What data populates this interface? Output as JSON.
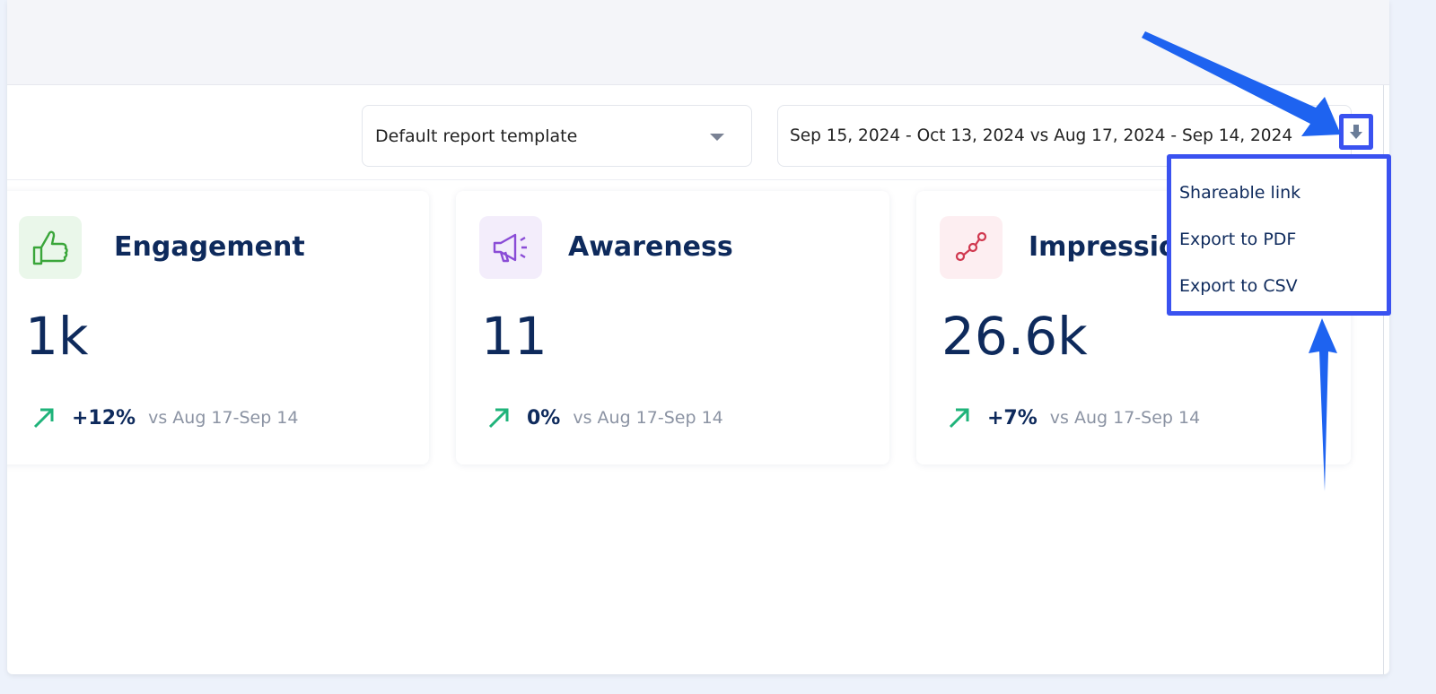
{
  "toolbar": {
    "template_select": {
      "value": "Default report template",
      "icon": "caret-down-icon"
    },
    "date_range": "Sep 15, 2024 - Oct 13, 2024 vs Aug 17, 2024 - Sep 14, 2024",
    "download_icon": "arrow-down-icon"
  },
  "cards": [
    {
      "title": "Engagement",
      "value": "1k",
      "change": "+12%",
      "compare": "vs Aug 17-Sep 14",
      "icon": "thumbs-up-icon",
      "icon_color": "#3aa63a",
      "icon_bg": "#eaf7ea"
    },
    {
      "title": "Awareness",
      "value": "11",
      "change": "0%",
      "compare": "vs Aug 17-Sep 14",
      "icon": "megaphone-icon",
      "icon_color": "#8a4cd6",
      "icon_bg": "#f3edfb"
    },
    {
      "title": "Impressions",
      "value": "26.6k",
      "change": "+7%",
      "compare": "vs Aug 17-Sep 14",
      "icon": "share-nodes-icon",
      "icon_color": "#d0384f",
      "icon_bg": "#fdeef1"
    }
  ],
  "export_menu": {
    "items": [
      "Shareable link",
      "Export to PDF",
      "Export to CSV"
    ]
  },
  "colors": {
    "trend_up": "#1fb37a",
    "highlight": "#3a52f0",
    "annotation_arrow": "#1e63f0",
    "text_dark": "#0e2a5c"
  }
}
